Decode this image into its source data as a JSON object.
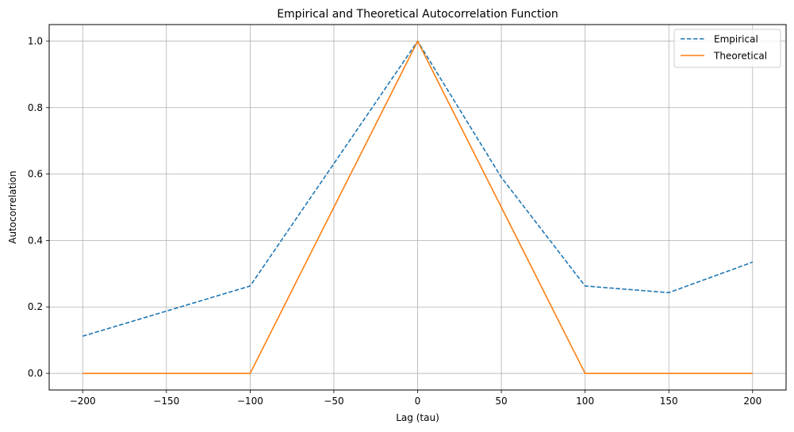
{
  "chart_data": {
    "type": "line",
    "title": "Empirical and Theoretical Autocorrelation Function",
    "xlabel": "Lag (tau)",
    "ylabel": "Autocorrelation",
    "xlim": [
      -220,
      220
    ],
    "ylim": [
      -0.05,
      1.05
    ],
    "xticks": [
      -200,
      -150,
      -100,
      -50,
      0,
      50,
      100,
      150,
      200
    ],
    "xtick_labels": [
      "−200",
      "−150",
      "−100",
      "−50",
      "0",
      "50",
      "100",
      "150",
      "200"
    ],
    "yticks": [
      0.0,
      0.2,
      0.4,
      0.6,
      0.8,
      1.0
    ],
    "ytick_labels": [
      "0.0",
      "0.2",
      "0.4",
      "0.6",
      "0.8",
      "1.0"
    ],
    "grid": true,
    "legend_position": "top-right",
    "series": [
      {
        "name": "Empirical",
        "color": "#1f77b4",
        "style": "dashed",
        "x": [
          -200,
          -100,
          0,
          50,
          100,
          150,
          200
        ],
        "y": [
          0.112,
          0.263,
          1.0,
          0.59,
          0.263,
          0.243,
          0.335
        ]
      },
      {
        "name": "Theoretical",
        "color": "#ff7f0e",
        "style": "solid",
        "x": [
          -200,
          -100,
          0,
          100,
          200
        ],
        "y": [
          0.0,
          0.0,
          1.0,
          0.0,
          0.0
        ]
      }
    ]
  }
}
